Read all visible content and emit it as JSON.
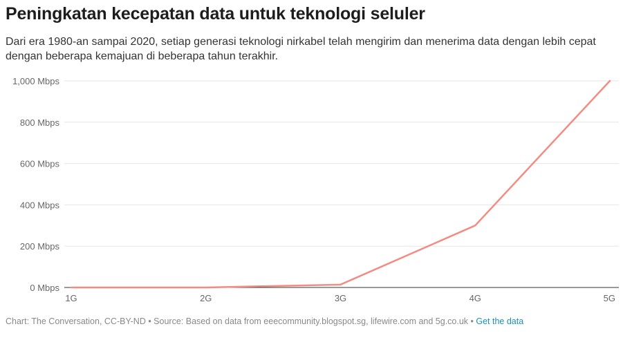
{
  "header": {
    "title": "Peningkatan kecepatan data untuk teknologi seluler",
    "subtitle": "Dari era 1980-an sampai 2020, setiap generasi teknologi nirkabel telah mengirim dan menerima data dengan lebih cepat dengan beberapa kemajuan di beberapa tahun terakhir."
  },
  "footer": {
    "source": "Chart: The Conversation, CC-BY-ND • Source: Based on data from eeecommunity.blogspot.sg, lifewire.com and 5g.co.uk • ",
    "link_label": "Get the data"
  },
  "colors": {
    "line": "#f28b82",
    "grid": "#e6e6e6",
    "axis": "#333333"
  },
  "chart_data": {
    "type": "line",
    "title": "Peningkatan kecepatan data untuk teknologi seluler",
    "categories": [
      "1G",
      "2G",
      "3G",
      "4G",
      "5G"
    ],
    "series": [
      {
        "values": [
          0.0024,
          0.064,
          14,
          300,
          1000
        ]
      }
    ],
    "ylim": [
      0,
      1000
    ],
    "yticks": [
      {
        "value": 0,
        "label": "0 Mbps"
      },
      {
        "value": 200,
        "label": "200 Mbps"
      },
      {
        "value": 400,
        "label": "400 Mbps"
      },
      {
        "value": 600,
        "label": "600 Mbps"
      },
      {
        "value": 800,
        "label": "800 Mbps"
      },
      {
        "value": 1000,
        "label": "1,000 Mbps"
      }
    ],
    "grid": true,
    "legend": "none"
  }
}
